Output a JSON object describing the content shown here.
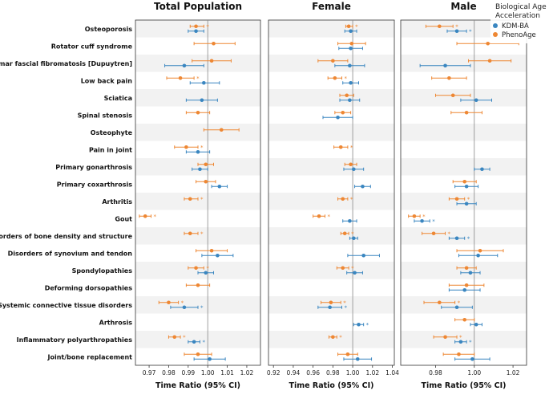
{
  "chart_data": {
    "type": "forest",
    "xlabel": "Time Ratio (95% CI)",
    "colors": {
      "kdm": "#3a86c0",
      "pheno": "#ee8733"
    },
    "legend": {
      "title_line1": "Biological Age",
      "title_line2": "Acceleration",
      "items": [
        {
          "name": "KDM-BA",
          "color": "#3a86c0"
        },
        {
          "name": "PhenoAge",
          "color": "#ee8733"
        }
      ],
      "position": "top-right"
    },
    "conditions": [
      "Osteoporosis",
      "Rotator cuff syndrome",
      "Palmar fascial fibromatosis [Dupuytren]",
      "Low back pain",
      "Sciatica",
      "Spinal stenosis",
      "Osteophyte",
      "Pain in joint",
      "Primary gonarthrosis",
      "Primary coxarthrosis",
      "Arthritis",
      "Gout",
      "Disorders of bone density and structure",
      "Disorders of synovium and tendon",
      "Spondylopathies",
      "Deforming dorsopathies",
      "Systemic connective tissue disorders",
      "Arthrosis",
      "Inflammatory polyarthropathies",
      "Joint/bone replacement"
    ],
    "panels": [
      {
        "title": "Total Population",
        "xlim": [
          0.963,
          1.027
        ],
        "ticks": [
          "0.97",
          "0.98",
          "0.99",
          "1.00",
          "1.01",
          "1.02"
        ],
        "tick_values": [
          0.97,
          0.98,
          0.99,
          1.0,
          1.01,
          1.02
        ],
        "pheno": [
          [
            0.994,
            0.991,
            0.998,
            true
          ],
          [
            1.003,
            0.993,
            1.014,
            false
          ],
          [
            1.002,
            0.992,
            1.012,
            false
          ],
          [
            0.986,
            0.979,
            0.993,
            true
          ],
          null,
          [
            0.995,
            0.989,
            1.001,
            false
          ],
          [
            1.007,
            0.998,
            1.016,
            false
          ],
          [
            0.989,
            0.983,
            0.995,
            true
          ],
          [
            0.999,
            0.995,
            1.003,
            false
          ],
          [
            0.999,
            0.994,
            1.004,
            false
          ],
          [
            0.991,
            0.988,
            0.995,
            true
          ],
          [
            0.968,
            0.965,
            0.971,
            true
          ],
          [
            0.991,
            0.988,
            0.995,
            true
          ],
          [
            1.002,
            0.994,
            1.01,
            false
          ],
          [
            0.994,
            0.99,
            0.998,
            true
          ],
          [
            0.995,
            0.989,
            1.001,
            false
          ],
          [
            0.98,
            0.975,
            0.985,
            true
          ],
          null,
          [
            0.983,
            0.98,
            0.986,
            true
          ],
          [
            0.995,
            0.988,
            1.002,
            false
          ]
        ],
        "kdm": [
          [
            0.994,
            0.99,
            0.998,
            false
          ],
          null,
          [
            0.988,
            0.978,
            0.998,
            false
          ],
          [
            0.998,
            0.991,
            1.006,
            false
          ],
          [
            0.997,
            0.989,
            1.005,
            false
          ],
          null,
          null,
          [
            0.995,
            0.989,
            1.001,
            false
          ],
          [
            0.996,
            0.992,
            1.0,
            false
          ],
          [
            1.006,
            1.002,
            1.01,
            false
          ],
          null,
          null,
          null,
          [
            1.005,
            0.997,
            1.013,
            false
          ],
          [
            0.999,
            0.995,
            1.003,
            false
          ],
          null,
          [
            0.988,
            0.981,
            0.995,
            true
          ],
          null,
          [
            0.993,
            0.99,
            0.996,
            true
          ],
          [
            1.001,
            0.993,
            1.009,
            false
          ]
        ]
      },
      {
        "title": "Female",
        "xlim": [
          0.915,
          1.042
        ],
        "ticks": [
          "0.92",
          "0.94",
          "0.96",
          "0.98",
          "1.00",
          "1.02",
          "1.04"
        ],
        "tick_values": [
          0.92,
          0.94,
          0.96,
          0.98,
          1.0,
          1.02,
          1.04
        ],
        "pheno": [
          [
            0.996,
            0.993,
            1.0,
            true
          ],
          [
            0.999,
            0.985,
            1.013,
            false
          ],
          [
            0.98,
            0.965,
            0.995,
            false
          ],
          [
            0.982,
            0.975,
            0.989,
            true
          ],
          [
            0.994,
            0.987,
            1.001,
            false
          ],
          [
            0.99,
            0.982,
            0.998,
            false
          ],
          null,
          [
            0.988,
            0.981,
            0.995,
            true
          ],
          [
            0.998,
            0.992,
            1.004,
            false
          ],
          null,
          [
            0.99,
            0.985,
            0.995,
            true
          ],
          [
            0.966,
            0.96,
            0.972,
            true
          ],
          [
            0.992,
            0.988,
            0.996,
            true
          ],
          null,
          [
            0.99,
            0.984,
            0.996,
            true
          ],
          null,
          [
            0.978,
            0.968,
            0.988,
            true
          ],
          null,
          [
            0.98,
            0.976,
            0.984,
            true
          ],
          [
            0.995,
            0.985,
            1.005,
            false
          ]
        ],
        "kdm": [
          [
            0.998,
            0.992,
            1.004,
            false
          ],
          [
            0.998,
            0.986,
            1.01,
            false
          ],
          [
            0.997,
            0.982,
            1.012,
            false
          ],
          [
            0.998,
            0.99,
            1.006,
            false
          ],
          [
            0.997,
            0.987,
            1.007,
            false
          ],
          [
            0.985,
            0.97,
            1.0,
            false
          ],
          null,
          null,
          [
            1.001,
            0.991,
            1.011,
            false
          ],
          [
            1.01,
            1.002,
            1.018,
            false
          ],
          null,
          [
            0.997,
            0.99,
            1.004,
            false
          ],
          [
            1.001,
            0.997,
            1.005,
            false
          ],
          [
            1.011,
            0.995,
            1.027,
            false
          ],
          [
            1.002,
            0.994,
            1.01,
            false
          ],
          null,
          [
            0.977,
            0.965,
            0.989,
            true
          ],
          [
            1.006,
            1.001,
            1.011,
            true
          ],
          null,
          [
            1.005,
            0.991,
            1.019,
            false
          ]
        ]
      },
      {
        "title": "Male",
        "xlim": [
          0.962,
          1.027
        ],
        "ticks": [
          "0.98",
          "1.00",
          "1.02"
        ],
        "tick_values": [
          0.98,
          1.0,
          1.02
        ],
        "pheno": [
          [
            0.982,
            0.975,
            0.989,
            true
          ],
          [
            1.007,
            0.991,
            1.023,
            false
          ],
          [
            1.008,
            0.997,
            1.019,
            false
          ],
          [
            0.987,
            0.978,
            0.996,
            false
          ],
          [
            0.989,
            0.98,
            0.998,
            false
          ],
          [
            0.996,
            0.988,
            1.004,
            false
          ],
          null,
          null,
          null,
          [
            0.995,
            0.989,
            1.001,
            false
          ],
          [
            0.991,
            0.987,
            0.995,
            true
          ],
          [
            0.969,
            0.966,
            0.972,
            true
          ],
          [
            0.979,
            0.973,
            0.985,
            true
          ],
          [
            1.003,
            0.991,
            1.015,
            false
          ],
          [
            0.996,
            0.991,
            1.001,
            false
          ],
          [
            0.996,
            0.987,
            1.005,
            false
          ],
          [
            0.982,
            0.974,
            0.99,
            true
          ],
          [
            0.995,
            0.99,
            1.0,
            false
          ],
          [
            0.985,
            0.979,
            0.991,
            true
          ],
          [
            0.992,
            0.984,
            1.0,
            false
          ]
        ],
        "kdm": [
          [
            0.991,
            0.986,
            0.996,
            true
          ],
          null,
          [
            0.985,
            0.972,
            0.998,
            false
          ],
          null,
          [
            1.001,
            0.993,
            1.009,
            false
          ],
          null,
          null,
          null,
          [
            1.004,
            1.0,
            1.008,
            false
          ],
          [
            0.996,
            0.99,
            1.002,
            false
          ],
          [
            0.996,
            0.991,
            1.001,
            false
          ],
          [
            0.973,
            0.969,
            0.977,
            true
          ],
          [
            0.991,
            0.987,
            0.995,
            true
          ],
          [
            1.002,
            0.992,
            1.012,
            false
          ],
          [
            0.998,
            0.993,
            1.003,
            false
          ],
          [
            0.995,
            0.987,
            1.003,
            false
          ],
          [
            0.991,
            0.983,
            0.999,
            false
          ],
          [
            1.001,
            0.998,
            1.004,
            false
          ],
          [
            0.993,
            0.99,
            0.996,
            true
          ],
          [
            0.999,
            0.99,
            1.008,
            false
          ]
        ]
      }
    ]
  }
}
